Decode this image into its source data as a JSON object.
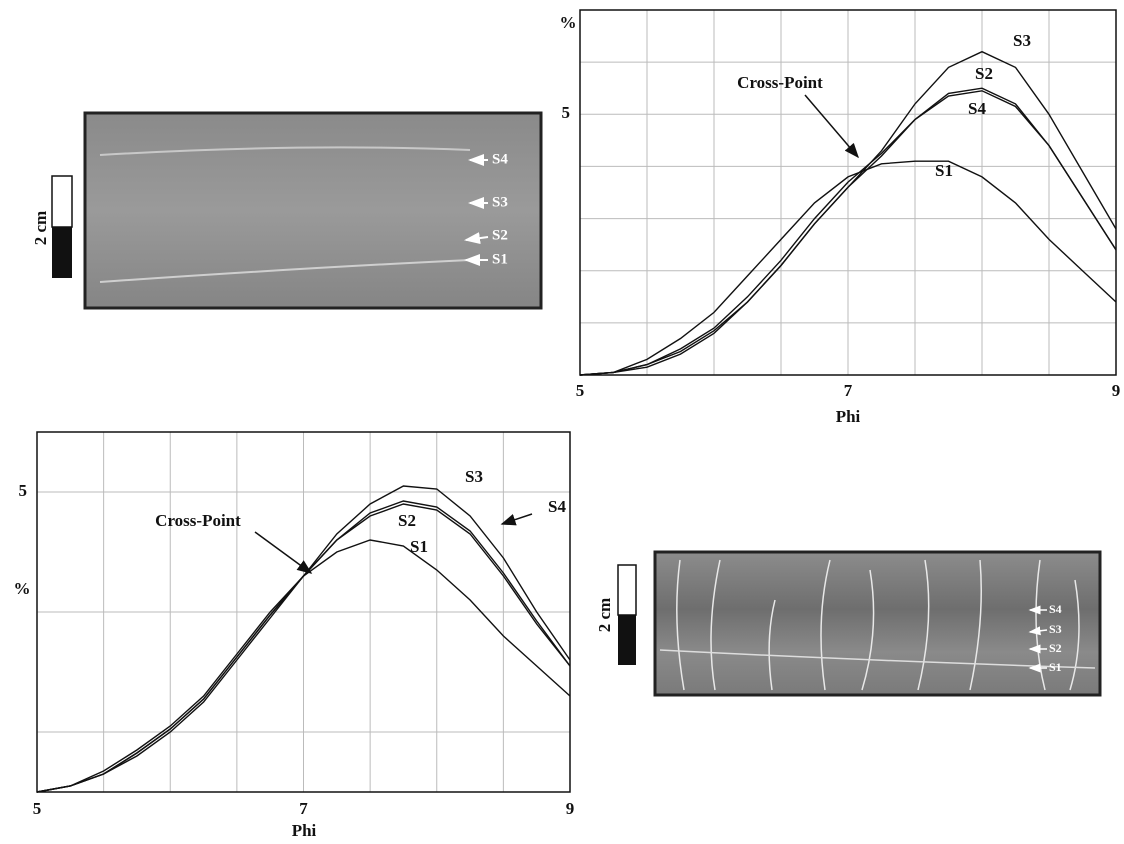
{
  "chart_data": [
    {
      "type": "line",
      "xlabel": "Phi",
      "ylabel": "%",
      "annotation": "Cross-Point",
      "x": [
        5,
        5.25,
        5.5,
        5.75,
        6,
        6.25,
        6.5,
        6.75,
        7,
        7.25,
        7.5,
        7.75,
        8,
        8.25,
        8.5,
        8.75,
        9
      ],
      "xlim": [
        5,
        9
      ],
      "xticks": [
        5,
        7,
        9
      ],
      "x_grid": [
        5.5,
        6,
        6.5,
        7.5,
        8,
        8.5
      ],
      "ylim": [
        0,
        7
      ],
      "yticks": [
        5
      ],
      "y_grid": [
        1,
        2,
        3,
        4,
        6
      ],
      "grid": true,
      "series": [
        {
          "name": "S1",
          "color": "#111111",
          "values": [
            0,
            0.05,
            0.3,
            0.7,
            1.2,
            1.9,
            2.6,
            3.3,
            3.8,
            4.05,
            4.1,
            4.1,
            3.8,
            3.3,
            2.6,
            2.0,
            1.4
          ]
        },
        {
          "name": "S2",
          "color": "#111111",
          "values": [
            0,
            0.05,
            0.2,
            0.5,
            0.9,
            1.5,
            2.2,
            3.0,
            3.7,
            4.25,
            4.9,
            5.4,
            5.5,
            5.2,
            4.4,
            3.4,
            2.4
          ]
        },
        {
          "name": "S3",
          "color": "#111111",
          "values": [
            0,
            0.05,
            0.2,
            0.45,
            0.85,
            1.4,
            2.1,
            2.9,
            3.6,
            4.3,
            5.2,
            5.9,
            6.2,
            5.9,
            5.0,
            3.9,
            2.8
          ]
        },
        {
          "name": "S4",
          "color": "#111111",
          "values": [
            0,
            0.05,
            0.15,
            0.4,
            0.8,
            1.4,
            2.1,
            2.9,
            3.6,
            4.2,
            4.9,
            5.35,
            5.45,
            5.15,
            4.4,
            3.4,
            2.4
          ]
        }
      ]
    },
    {
      "type": "line",
      "xlabel": "Phi",
      "ylabel": "%",
      "annotation": "Cross-Point",
      "x": [
        5,
        5.25,
        5.5,
        5.75,
        6,
        6.25,
        6.5,
        6.75,
        7,
        7.25,
        7.5,
        7.75,
        8,
        8.25,
        8.5,
        8.75,
        9
      ],
      "xlim": [
        5,
        9
      ],
      "xticks": [
        5,
        7,
        9
      ],
      "x_grid": [
        5.5,
        6,
        6.5,
        7.5,
        8,
        8.5
      ],
      "ylim": [
        0,
        6
      ],
      "yticks": [
        5
      ],
      "y_grid": [
        1,
        3
      ],
      "grid": true,
      "series": [
        {
          "name": "S1",
          "color": "#111111",
          "values": [
            0,
            0.1,
            0.35,
            0.7,
            1.1,
            1.6,
            2.3,
            3.0,
            3.6,
            4.0,
            4.2,
            4.1,
            3.7,
            3.2,
            2.6,
            2.1,
            1.6
          ]
        },
        {
          "name": "S2",
          "color": "#111111",
          "values": [
            0,
            0.1,
            0.3,
            0.65,
            1.05,
            1.55,
            2.25,
            2.95,
            3.6,
            4.2,
            4.6,
            4.8,
            4.7,
            4.3,
            3.6,
            2.8,
            2.1
          ]
        },
        {
          "name": "S3",
          "color": "#111111",
          "values": [
            0,
            0.1,
            0.3,
            0.6,
            1.0,
            1.5,
            2.2,
            2.9,
            3.6,
            4.3,
            4.8,
            5.1,
            5.05,
            4.6,
            3.9,
            3.0,
            2.2
          ]
        },
        {
          "name": "S4",
          "color": "#111111",
          "values": [
            0,
            0.1,
            0.3,
            0.65,
            1.05,
            1.55,
            2.25,
            2.95,
            3.6,
            4.2,
            4.65,
            4.85,
            4.75,
            4.35,
            3.65,
            2.85,
            2.1
          ]
        }
      ]
    }
  ],
  "images": [
    {
      "scale_label": "2 cm",
      "labels": [
        "S4",
        "S3",
        "S2",
        "S1"
      ]
    },
    {
      "scale_label": "2 cm",
      "labels": [
        "S4",
        "S3",
        "S2",
        "S1"
      ]
    }
  ]
}
